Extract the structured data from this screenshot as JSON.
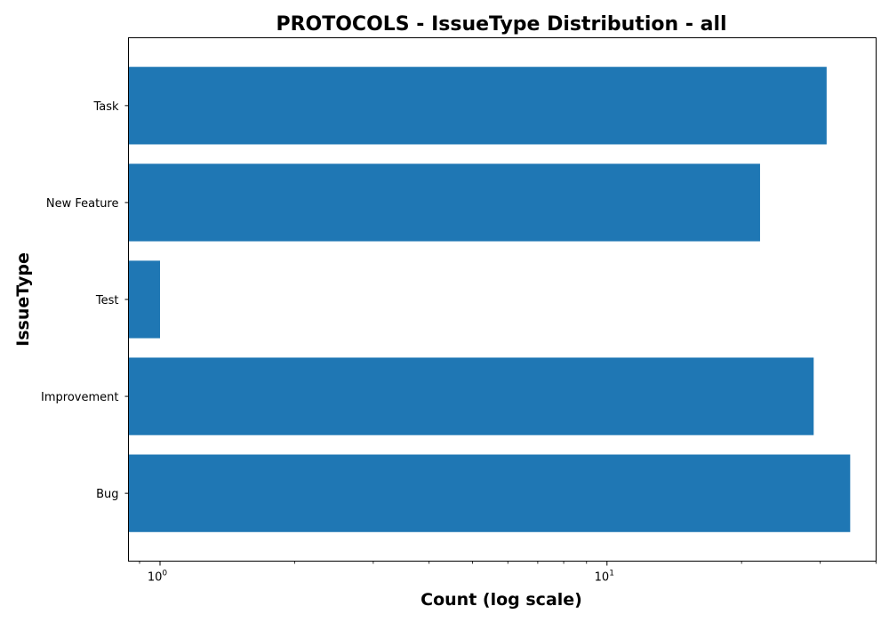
{
  "chart_data": {
    "type": "bar",
    "orientation": "horizontal",
    "title": "PROTOCOLS - IssueType Distribution - all",
    "xlabel": "Count (log scale)",
    "ylabel": "IssueType",
    "x_scale": "log",
    "xlim": [
      0.85,
      40
    ],
    "x_ticks": [
      {
        "value": 1,
        "base": "10",
        "exp": "0"
      },
      {
        "value": 10,
        "base": "10",
        "exp": "1"
      }
    ],
    "categories": [
      "Bug",
      "Improvement",
      "Test",
      "New Feature",
      "Task"
    ],
    "values": [
      35,
      29,
      1,
      22,
      31
    ],
    "bar_color": "#1f77b4",
    "grid": false,
    "legend": "none"
  }
}
